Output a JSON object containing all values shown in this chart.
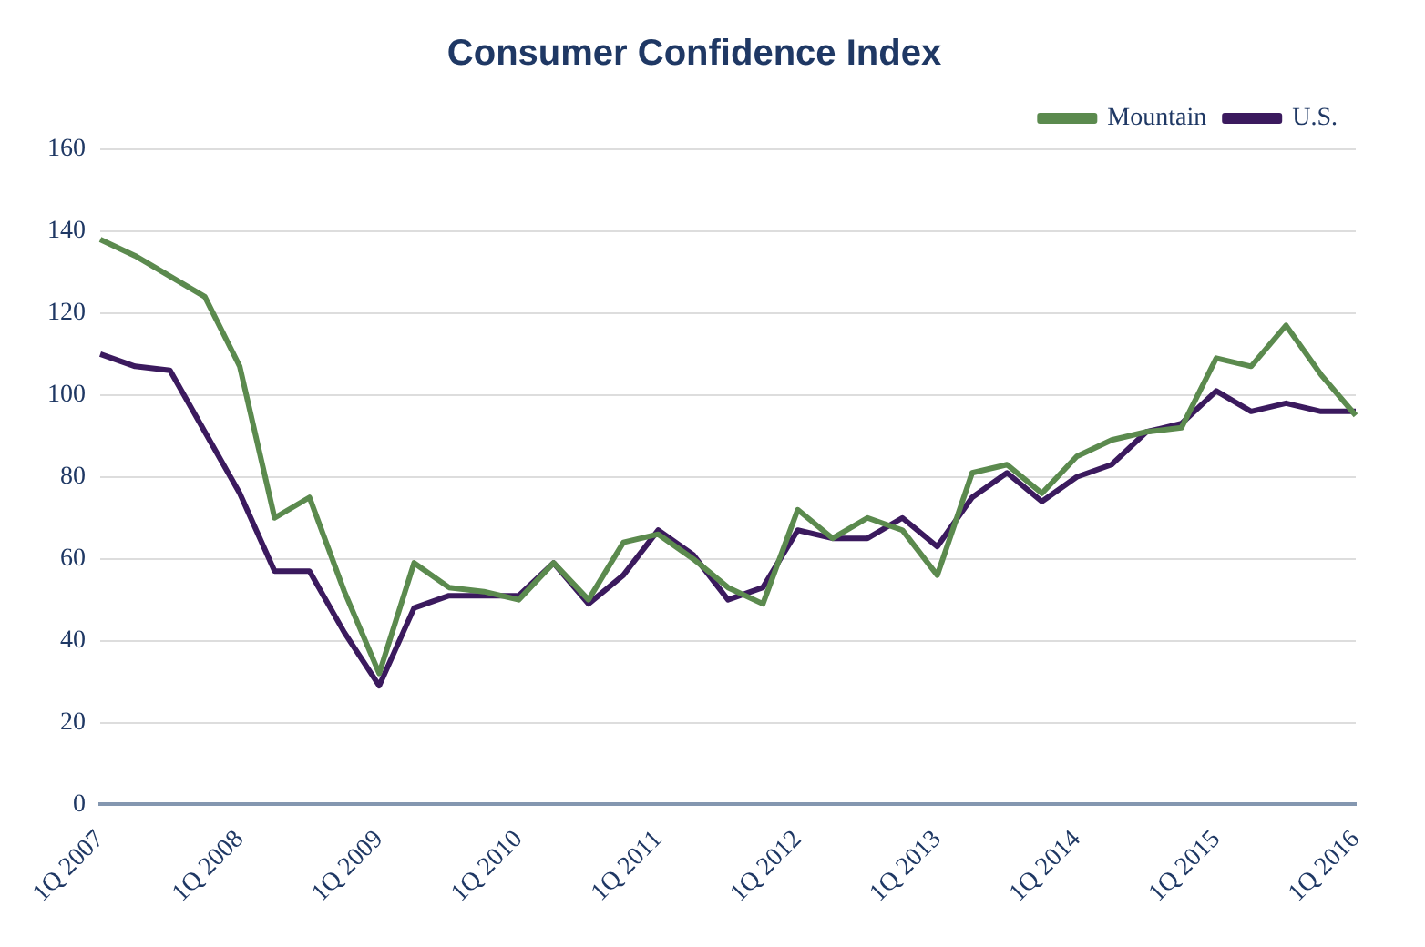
{
  "chart_data": {
    "type": "line",
    "title": "Consumer Confidence Index",
    "categories": [
      "1Q 2007",
      null,
      null,
      null,
      "1Q 2008",
      null,
      null,
      null,
      "1Q 2009",
      null,
      null,
      null,
      "1Q 2010",
      null,
      null,
      null,
      "1Q 2011",
      null,
      null,
      null,
      "1Q 2012",
      null,
      null,
      null,
      "1Q 2013",
      null,
      null,
      null,
      "1Q 2014",
      null,
      null,
      null,
      "1Q 2015",
      null,
      null,
      null,
      "1Q 2016"
    ],
    "series": [
      {
        "name": "Mountain",
        "color": "#5b8a4e",
        "values": [
          138,
          134,
          129,
          124,
          107,
          70,
          75,
          52,
          32,
          59,
          53,
          52,
          50,
          59,
          50,
          64,
          66,
          60,
          53,
          49,
          72,
          65,
          70,
          67,
          56,
          81,
          83,
          76,
          85,
          89,
          91,
          92,
          109,
          107,
          117,
          105,
          95
        ]
      },
      {
        "name": "U.S.",
        "color": "#3b1a5e",
        "values": [
          110,
          107,
          106,
          91,
          76,
          57,
          57,
          42,
          29,
          48,
          51,
          51,
          51,
          59,
          49,
          56,
          67,
          61,
          50,
          53,
          67,
          65,
          65,
          70,
          63,
          75,
          81,
          74,
          80,
          83,
          91,
          93,
          101,
          96,
          98,
          96,
          96
        ]
      }
    ],
    "ylim": [
      0,
      160
    ],
    "yticks": [
      0,
      20,
      40,
      60,
      80,
      100,
      120,
      140,
      160
    ],
    "grid": "y",
    "legend": "top right",
    "marker": "none",
    "line_style": "solid"
  }
}
